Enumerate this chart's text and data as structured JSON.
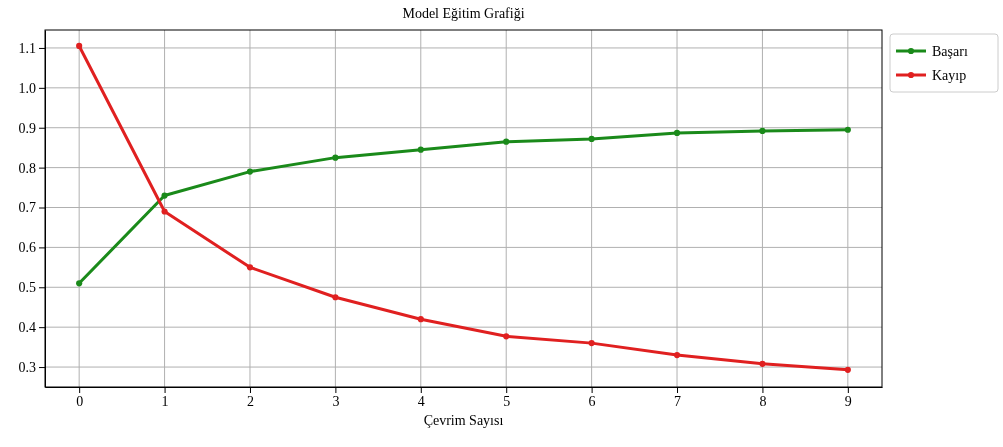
{
  "chart_data": {
    "type": "line",
    "title": "Model Eğitim Grafiği",
    "xlabel": "Çevrim Sayısı",
    "x": [
      0,
      1,
      2,
      3,
      4,
      5,
      6,
      7,
      8,
      9
    ],
    "series": [
      {
        "name": "Başarı",
        "color": "#1a8a1a",
        "values": [
          0.51,
          0.73,
          0.79,
          0.825,
          0.845,
          0.865,
          0.872,
          0.887,
          0.892,
          0.895
        ]
      },
      {
        "name": "Kayıp",
        "color": "#e02020",
        "values": [
          1.105,
          0.69,
          0.55,
          0.475,
          0.42,
          0.377,
          0.36,
          0.33,
          0.308,
          0.293
        ]
      }
    ],
    "xlim": [
      -0.4,
      9.4
    ],
    "xticks": [
      0,
      1,
      2,
      3,
      4,
      5,
      6,
      7,
      8,
      9
    ],
    "ylim": [
      0.25,
      1.145
    ],
    "yticks": [
      0.3,
      0.4,
      0.5,
      0.6,
      0.7,
      0.8,
      0.9,
      {
        "value": 1,
        "label": "1.0"
      },
      1.1
    ],
    "grid": true,
    "legend": "top right",
    "marker": "circle",
    "line_style": "solid"
  }
}
